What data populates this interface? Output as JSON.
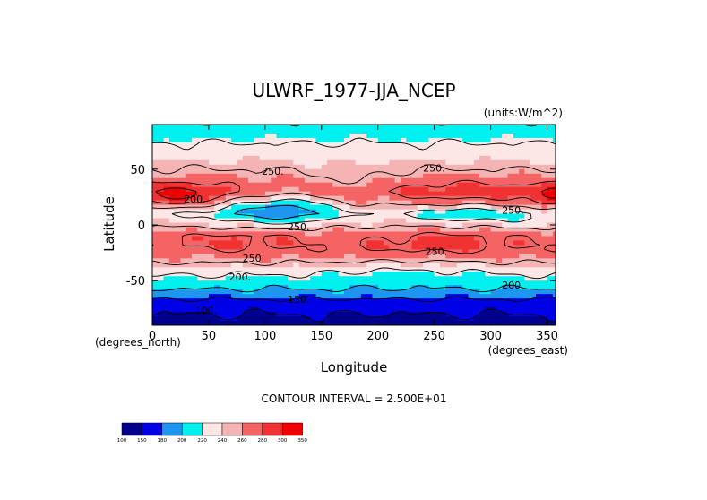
{
  "chart_data": {
    "type": "heatmap",
    "title": "ULWRF_1977-JJA_NCEP",
    "units_label": "(units:W/m^2)",
    "xlabel": "Longitude",
    "ylabel": "Latitude",
    "x_axis_note": "(degrees_east)",
    "y_axis_note": "(degrees_north)",
    "xlim": [
      0,
      357.5
    ],
    "ylim": [
      -90,
      90
    ],
    "x_ticks": [
      0,
      50,
      100,
      150,
      200,
      250,
      300,
      350
    ],
    "y_ticks": [
      -50,
      0,
      50
    ],
    "footer": "CONTOUR INTERVAL = 2.500E+01",
    "contour_labels": [
      {
        "text": "250.",
        "lon": 97,
        "lat": 45
      },
      {
        "text": "250.",
        "lon": 240,
        "lat": 48
      },
      {
        "text": "200.",
        "lon": 28,
        "lat": 20
      },
      {
        "text": "250.",
        "lon": 120,
        "lat": -5
      },
      {
        "text": "250.",
        "lon": 242,
        "lat": -27
      },
      {
        "text": "250.",
        "lon": 80,
        "lat": -33
      },
      {
        "text": "200.",
        "lon": 68,
        "lat": -50
      },
      {
        "text": "200.",
        "lon": 310,
        "lat": -57
      },
      {
        "text": "150.",
        "lon": 120,
        "lat": -70
      },
      {
        "text": "100.",
        "lon": 38,
        "lat": -80
      },
      {
        "text": "250.",
        "lon": 310,
        "lat": 10
      }
    ],
    "zonal_profile": [
      {
        "lat": 90,
        "value": 205
      },
      {
        "lat": 80,
        "value": 215
      },
      {
        "lat": 70,
        "value": 230
      },
      {
        "lat": 60,
        "value": 235
      },
      {
        "lat": 50,
        "value": 250
      },
      {
        "lat": 40,
        "value": 265
      },
      {
        "lat": 30,
        "value": 275
      },
      {
        "lat": 20,
        "value": 255
      },
      {
        "lat": 10,
        "value": 225
      },
      {
        "lat": 0,
        "value": 245
      },
      {
        "lat": -10,
        "value": 270
      },
      {
        "lat": -20,
        "value": 275
      },
      {
        "lat": -30,
        "value": 260
      },
      {
        "lat": -40,
        "value": 235
      },
      {
        "lat": -50,
        "value": 215
      },
      {
        "lat": -60,
        "value": 195
      },
      {
        "lat": -70,
        "value": 165
      },
      {
        "lat": -80,
        "value": 150
      },
      {
        "lat": -90,
        "value": 140
      }
    ],
    "colorbar": {
      "levels": [
        100,
        150,
        180,
        200,
        220,
        240,
        260,
        280,
        300,
        350
      ],
      "colors": [
        "#00008c",
        "#0000e6",
        "#1e96f0",
        "#00f0f0",
        "#fce6e6",
        "#f5b4b4",
        "#f56464",
        "#f03232",
        "#f00000"
      ]
    }
  }
}
